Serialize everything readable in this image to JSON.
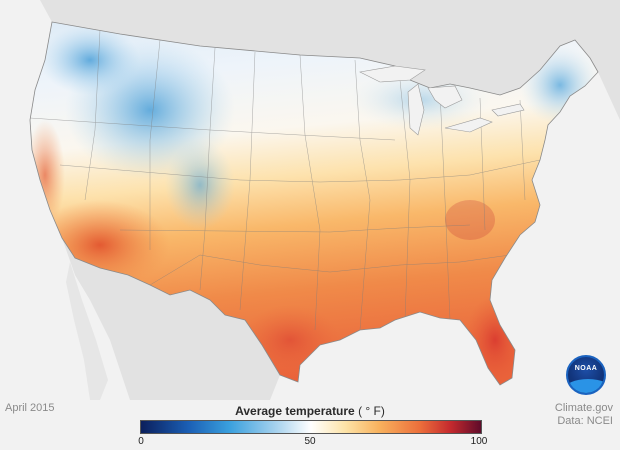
{
  "map": {
    "date": "April 2015",
    "legend": {
      "title": "Average temperature",
      "unit": "( ° F)",
      "min_label": "0",
      "mid_label": "50",
      "max_label": "100",
      "colors": [
        "#0b1f5c",
        "#1b5fb5",
        "#3aa0de",
        "#a9d3ee",
        "#ffffff",
        "#fde4a8",
        "#f8b25e",
        "#ec6f3b",
        "#c52a2e",
        "#5f0b2a"
      ]
    },
    "credit": {
      "source": "Climate.gov",
      "data": "Data: NCEI"
    },
    "logo": {
      "text": "NOAA"
    }
  }
}
